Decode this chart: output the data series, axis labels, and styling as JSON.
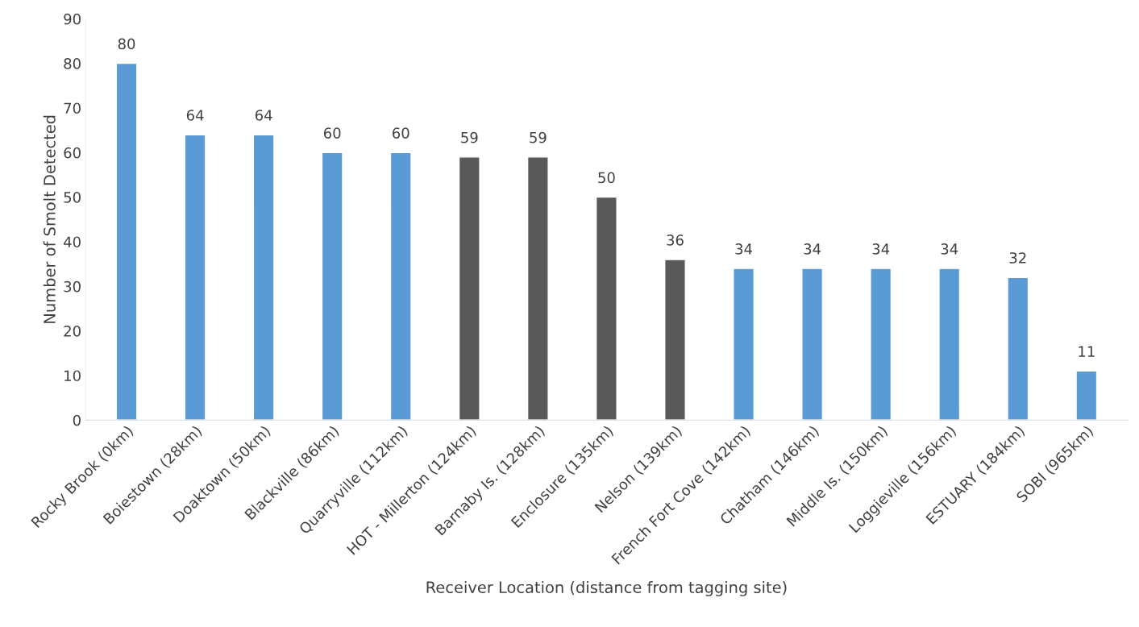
{
  "chart_data": {
    "type": "bar",
    "xlabel": "Receiver Location (distance from tagging site)",
    "ylabel": "Number of Smolt Detected",
    "categories": [
      "Rocky Brook (0km)",
      "Boiestown (28km)",
      "Doaktown (50km)",
      "Blackville (86km)",
      "Quarryville (112km)",
      "HOT - Millerton (124km)",
      "Barnaby Is. (128km)",
      "Enclosure (135km)",
      "Nelson (139km)",
      "French Fort Cove (142km)",
      "Chatham (146km)",
      "Middle Is. (150km)",
      "Loggieville (156km)",
      "ESTUARY (184km)",
      "SOBI (965km)"
    ],
    "values": [
      80,
      64,
      64,
      60,
      60,
      59,
      59,
      50,
      36,
      34,
      34,
      34,
      34,
      32,
      11
    ],
    "colors": [
      "#5b9bd5",
      "#5b9bd5",
      "#5b9bd5",
      "#5b9bd5",
      "#5b9bd5",
      "#595959",
      "#595959",
      "#595959",
      "#595959",
      "#5b9bd5",
      "#5b9bd5",
      "#5b9bd5",
      "#5b9bd5",
      "#5b9bd5",
      "#5b9bd5"
    ],
    "ylim": [
      0,
      90
    ],
    "yticks": [
      0,
      10,
      20,
      30,
      40,
      50,
      60,
      70,
      80,
      90
    ],
    "grid": false,
    "legend": false,
    "data_labels": true
  }
}
